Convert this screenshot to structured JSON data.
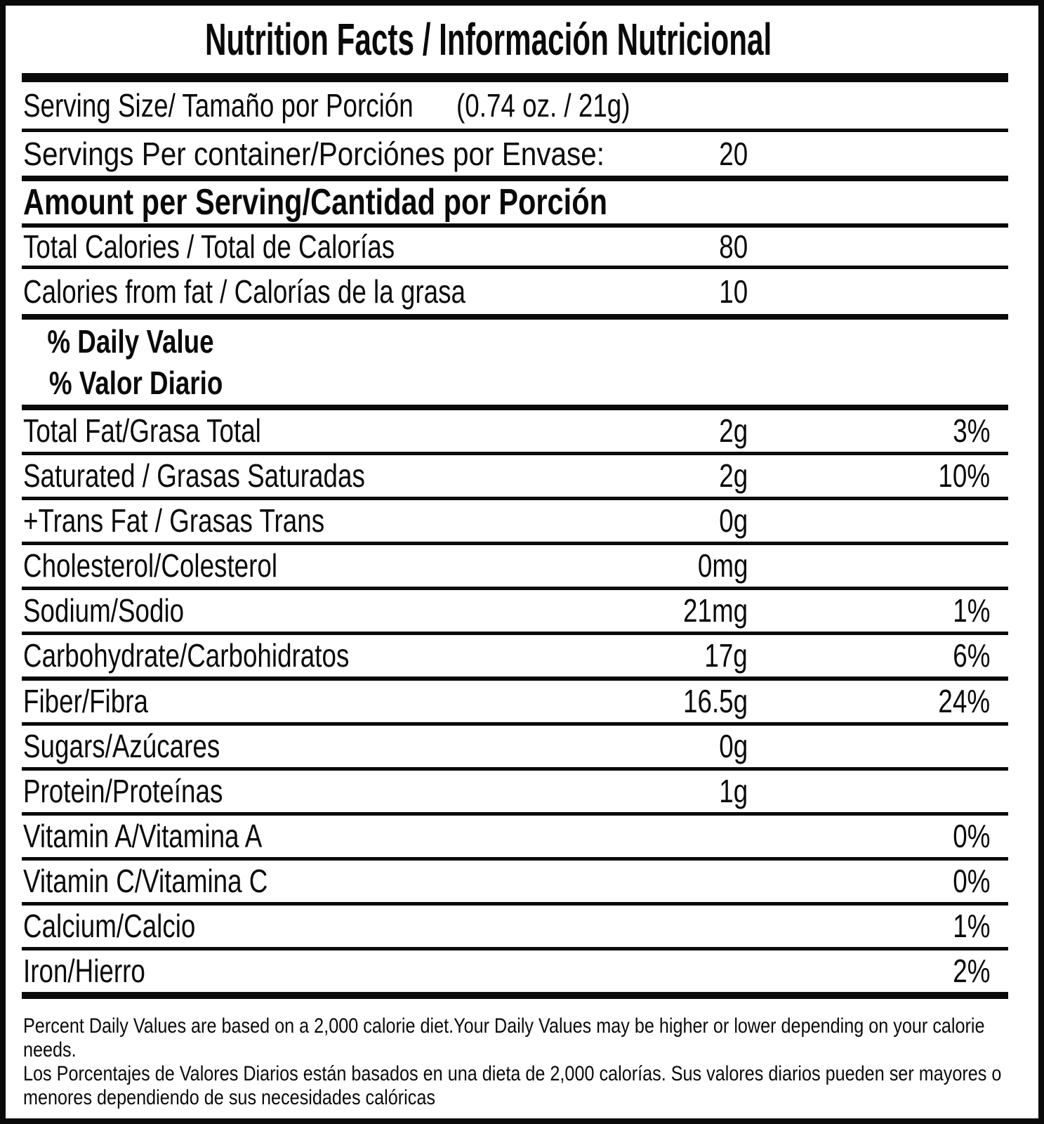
{
  "label": {
    "title": "Nutrition Facts / Información Nutricional",
    "serving": {
      "size_label": "Serving Size/ Tamaño por Porción",
      "size_value": "(0.74 oz. / 21g)",
      "per_container_label": "Servings Per container/Porciónes por Envase:",
      "per_container_value": "20"
    },
    "amount_header": "Amount per Serving/Cantidad por Porción",
    "calories": [
      {
        "label": "Total Calories / Total de Calorías",
        "value": "80"
      },
      {
        "label": "Calories from fat / Calorías de la grasa",
        "value": "10"
      }
    ],
    "daily_value_header": {
      "en": "% Daily Value",
      "es": "% Valor Diario"
    },
    "nutrients": [
      {
        "label": "Total Fat/Grasa Total",
        "amount": "2g",
        "dv": "3%"
      },
      {
        "label": "Saturated / Grasas Saturadas",
        "amount": "2g",
        "dv": "10%"
      },
      {
        "label": "+Trans Fat / Grasas Trans",
        "amount": "0g",
        "dv": ""
      },
      {
        "label": "Cholesterol/Colesterol",
        "amount": "0mg",
        "dv": ""
      },
      {
        "label": "Sodium/Sodio",
        "amount": "21mg",
        "dv": "1%"
      },
      {
        "label": "Carbohydrate/Carbohidratos",
        "amount": "17g",
        "dv": "6%"
      },
      {
        "label": "Fiber/Fibra",
        "amount": "16.5g",
        "dv": "24%"
      },
      {
        "label": "Sugars/Azúcares",
        "amount": "0g",
        "dv": ""
      },
      {
        "label": "Protein/Proteínas",
        "amount": "1g",
        "dv": ""
      },
      {
        "label": "Vitamin A/Vitamina A",
        "amount": "",
        "dv": "0%"
      },
      {
        "label": "Vitamin C/Vitamina C",
        "amount": "",
        "dv": "0%"
      },
      {
        "label": "Calcium/Calcio",
        "amount": "",
        "dv": "1%"
      },
      {
        "label": "Iron/Hierro",
        "amount": "",
        "dv": "2%"
      }
    ],
    "footnotes": {
      "en": "Percent Daily Values are based on a 2,000 calorie diet.Your Daily Values may be higher or lower depending on your calorie needs.",
      "es": "Los Porcentajes de Valores Diarios están basados en una dieta de 2,000 calorías. Sus valores diarios pueden ser mayores o menores dependiendo de sus necesidades calóricas"
    },
    "colors": {
      "ink": "#0a0a0a",
      "background": "#ffffff"
    }
  }
}
